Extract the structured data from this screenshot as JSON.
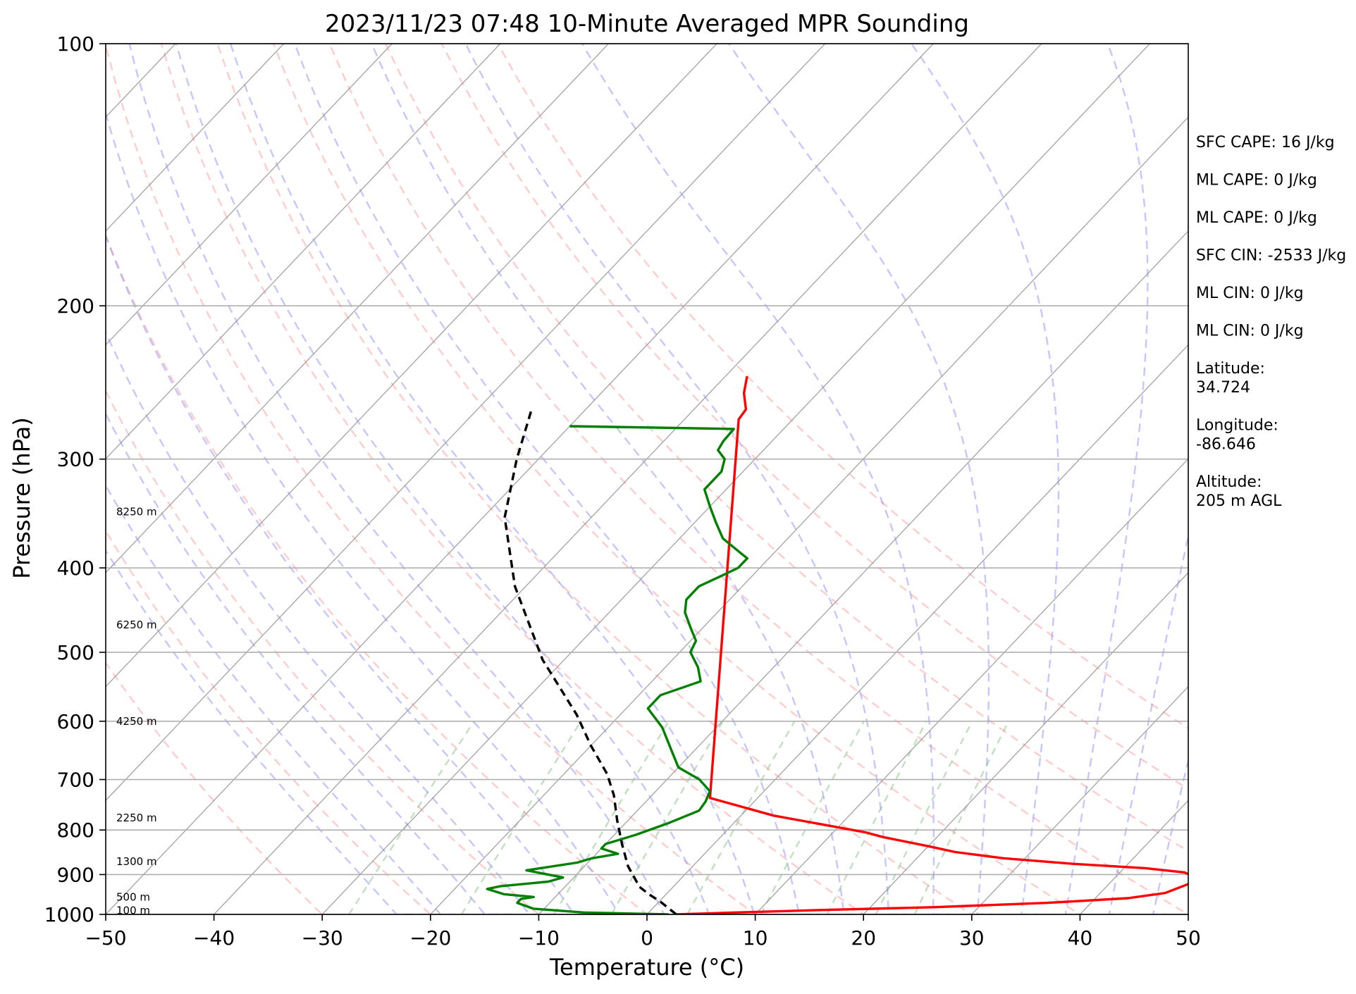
{
  "chart_data": {
    "type": "line",
    "title": "2023/11/23 07:48 10-Minute Averaged MPR Sounding",
    "xlabel": "Temperature (°C)",
    "ylabel": "Pressure (hPa)",
    "xlim": [
      -50,
      50
    ],
    "ylim": [
      1000,
      100
    ],
    "y_scale": "log",
    "grid": true,
    "x_ticks": [
      -50,
      -40,
      -30,
      -20,
      -10,
      0,
      10,
      20,
      30,
      40,
      50
    ],
    "x_tick_labels": [
      "−50",
      "−40",
      "−30",
      "−20",
      "−10",
      "0",
      "10",
      "20",
      "30",
      "40",
      "50"
    ],
    "y_ticks": [
      1000,
      900,
      800,
      700,
      600,
      500,
      400,
      300,
      200,
      100
    ],
    "y_tick_labels": [
      "1000",
      "900",
      "800",
      "700",
      "600",
      "500",
      "400",
      "300",
      "200",
      "100"
    ],
    "colors": {
      "temperature": "#ff0000",
      "dewpoint": "#008000",
      "parcel": "#000000",
      "isotherm": "#999999",
      "dry_adiabat": "#ff9999",
      "moist_adiabat": "#8080ff",
      "mixing_ratio": "#8cc68c"
    },
    "series": [
      {
        "role": "temperature",
        "style": "solid",
        "points": [
          [
            2.7,
            1000
          ],
          [
            8,
            995
          ],
          [
            15,
            989
          ],
          [
            26,
            981
          ],
          [
            36,
            970
          ],
          [
            43,
            958
          ],
          [
            46,
            945
          ],
          [
            48,
            912
          ],
          [
            46,
            895
          ],
          [
            42,
            885
          ],
          [
            35,
            875
          ],
          [
            28,
            862
          ],
          [
            23,
            848
          ],
          [
            20,
            835
          ],
          [
            15,
            815
          ],
          [
            13,
            805
          ],
          [
            3,
            770
          ],
          [
            -4.4,
            735
          ],
          [
            -35,
            270
          ],
          [
            -35.2,
            263
          ],
          [
            -36.8,
            252
          ],
          [
            -38,
            241
          ]
        ]
      },
      {
        "role": "dewpoint",
        "style": "solid",
        "points": [
          [
            2,
            1000
          ],
          [
            -6,
            995
          ],
          [
            -11,
            985
          ],
          [
            -13,
            970
          ],
          [
            -13,
            960
          ],
          [
            -12,
            955
          ],
          [
            -15,
            948
          ],
          [
            -17,
            935
          ],
          [
            -16,
            928
          ],
          [
            -12,
            917
          ],
          [
            -11,
            907
          ],
          [
            -15,
            890
          ],
          [
            -11,
            872
          ],
          [
            -10,
            862
          ],
          [
            -8,
            852
          ],
          [
            -10,
            840
          ],
          [
            -10,
            830
          ],
          [
            -8,
            810
          ],
          [
            -6,
            785
          ],
          [
            -4.3,
            760
          ],
          [
            -4.5,
            742
          ],
          [
            -5,
            722
          ],
          [
            -7,
            700
          ],
          [
            -10,
            678
          ],
          [
            -12,
            650
          ],
          [
            -15,
            610
          ],
          [
            -18,
            580
          ],
          [
            -18,
            560
          ],
          [
            -15.5,
            540
          ],
          [
            -17,
            520
          ],
          [
            -19,
            500
          ],
          [
            -19.5,
            485
          ],
          [
            -21,
            470
          ],
          [
            -23,
            450
          ],
          [
            -24,
            435
          ],
          [
            -24,
            420
          ],
          [
            -23,
            410
          ],
          [
            -22,
            400
          ],
          [
            -22,
            390
          ],
          [
            -23,
            385
          ],
          [
            -26,
            370
          ],
          [
            -28,
            355
          ],
          [
            -30,
            340
          ],
          [
            -32,
            325
          ],
          [
            -32,
            310
          ],
          [
            -32.8,
            300
          ],
          [
            -34.2,
            293
          ],
          [
            -34.5,
            286
          ],
          [
            -34.6,
            277
          ],
          [
            -50,
            275
          ]
        ]
      },
      {
        "role": "parcel",
        "style": "dashed",
        "points": [
          [
            2.7,
            1000
          ],
          [
            0.2,
            968
          ],
          [
            -1.6,
            948
          ],
          [
            -3.1,
            930
          ],
          [
            -6,
            880
          ],
          [
            -8.5,
            830
          ],
          [
            -11,
            780
          ],
          [
            -13.5,
            730
          ],
          [
            -16,
            690
          ],
          [
            -20,
            640
          ],
          [
            -24,
            590
          ],
          [
            -32,
            510
          ],
          [
            -41,
            420
          ],
          [
            -48,
            350
          ],
          [
            -52,
            300
          ],
          [
            -55,
            263
          ]
        ]
      }
    ],
    "height_labels": [
      {
        "text": "100 m",
        "p": 990
      },
      {
        "text": "500 m",
        "p": 955
      },
      {
        "text": "1300 m",
        "p": 870
      },
      {
        "text": "2250 m",
        "p": 775
      },
      {
        "text": "4250 m",
        "p": 600
      },
      {
        "text": "6250 m",
        "p": 465
      },
      {
        "text": "8250 m",
        "p": 345
      }
    ],
    "info_panel": [
      "SFC CAPE: 16 J/kg",
      "ML CAPE: 0 J/kg",
      "ML CAPE: 0 J/kg",
      "SFC CIN: -2533 J/kg",
      "ML CIN: 0 J/kg",
      "ML CIN: 0 J/kg",
      "Latitude:\n34.724",
      "Longitude:\n-86.646",
      "Altitude:\n205 m AGL"
    ]
  }
}
